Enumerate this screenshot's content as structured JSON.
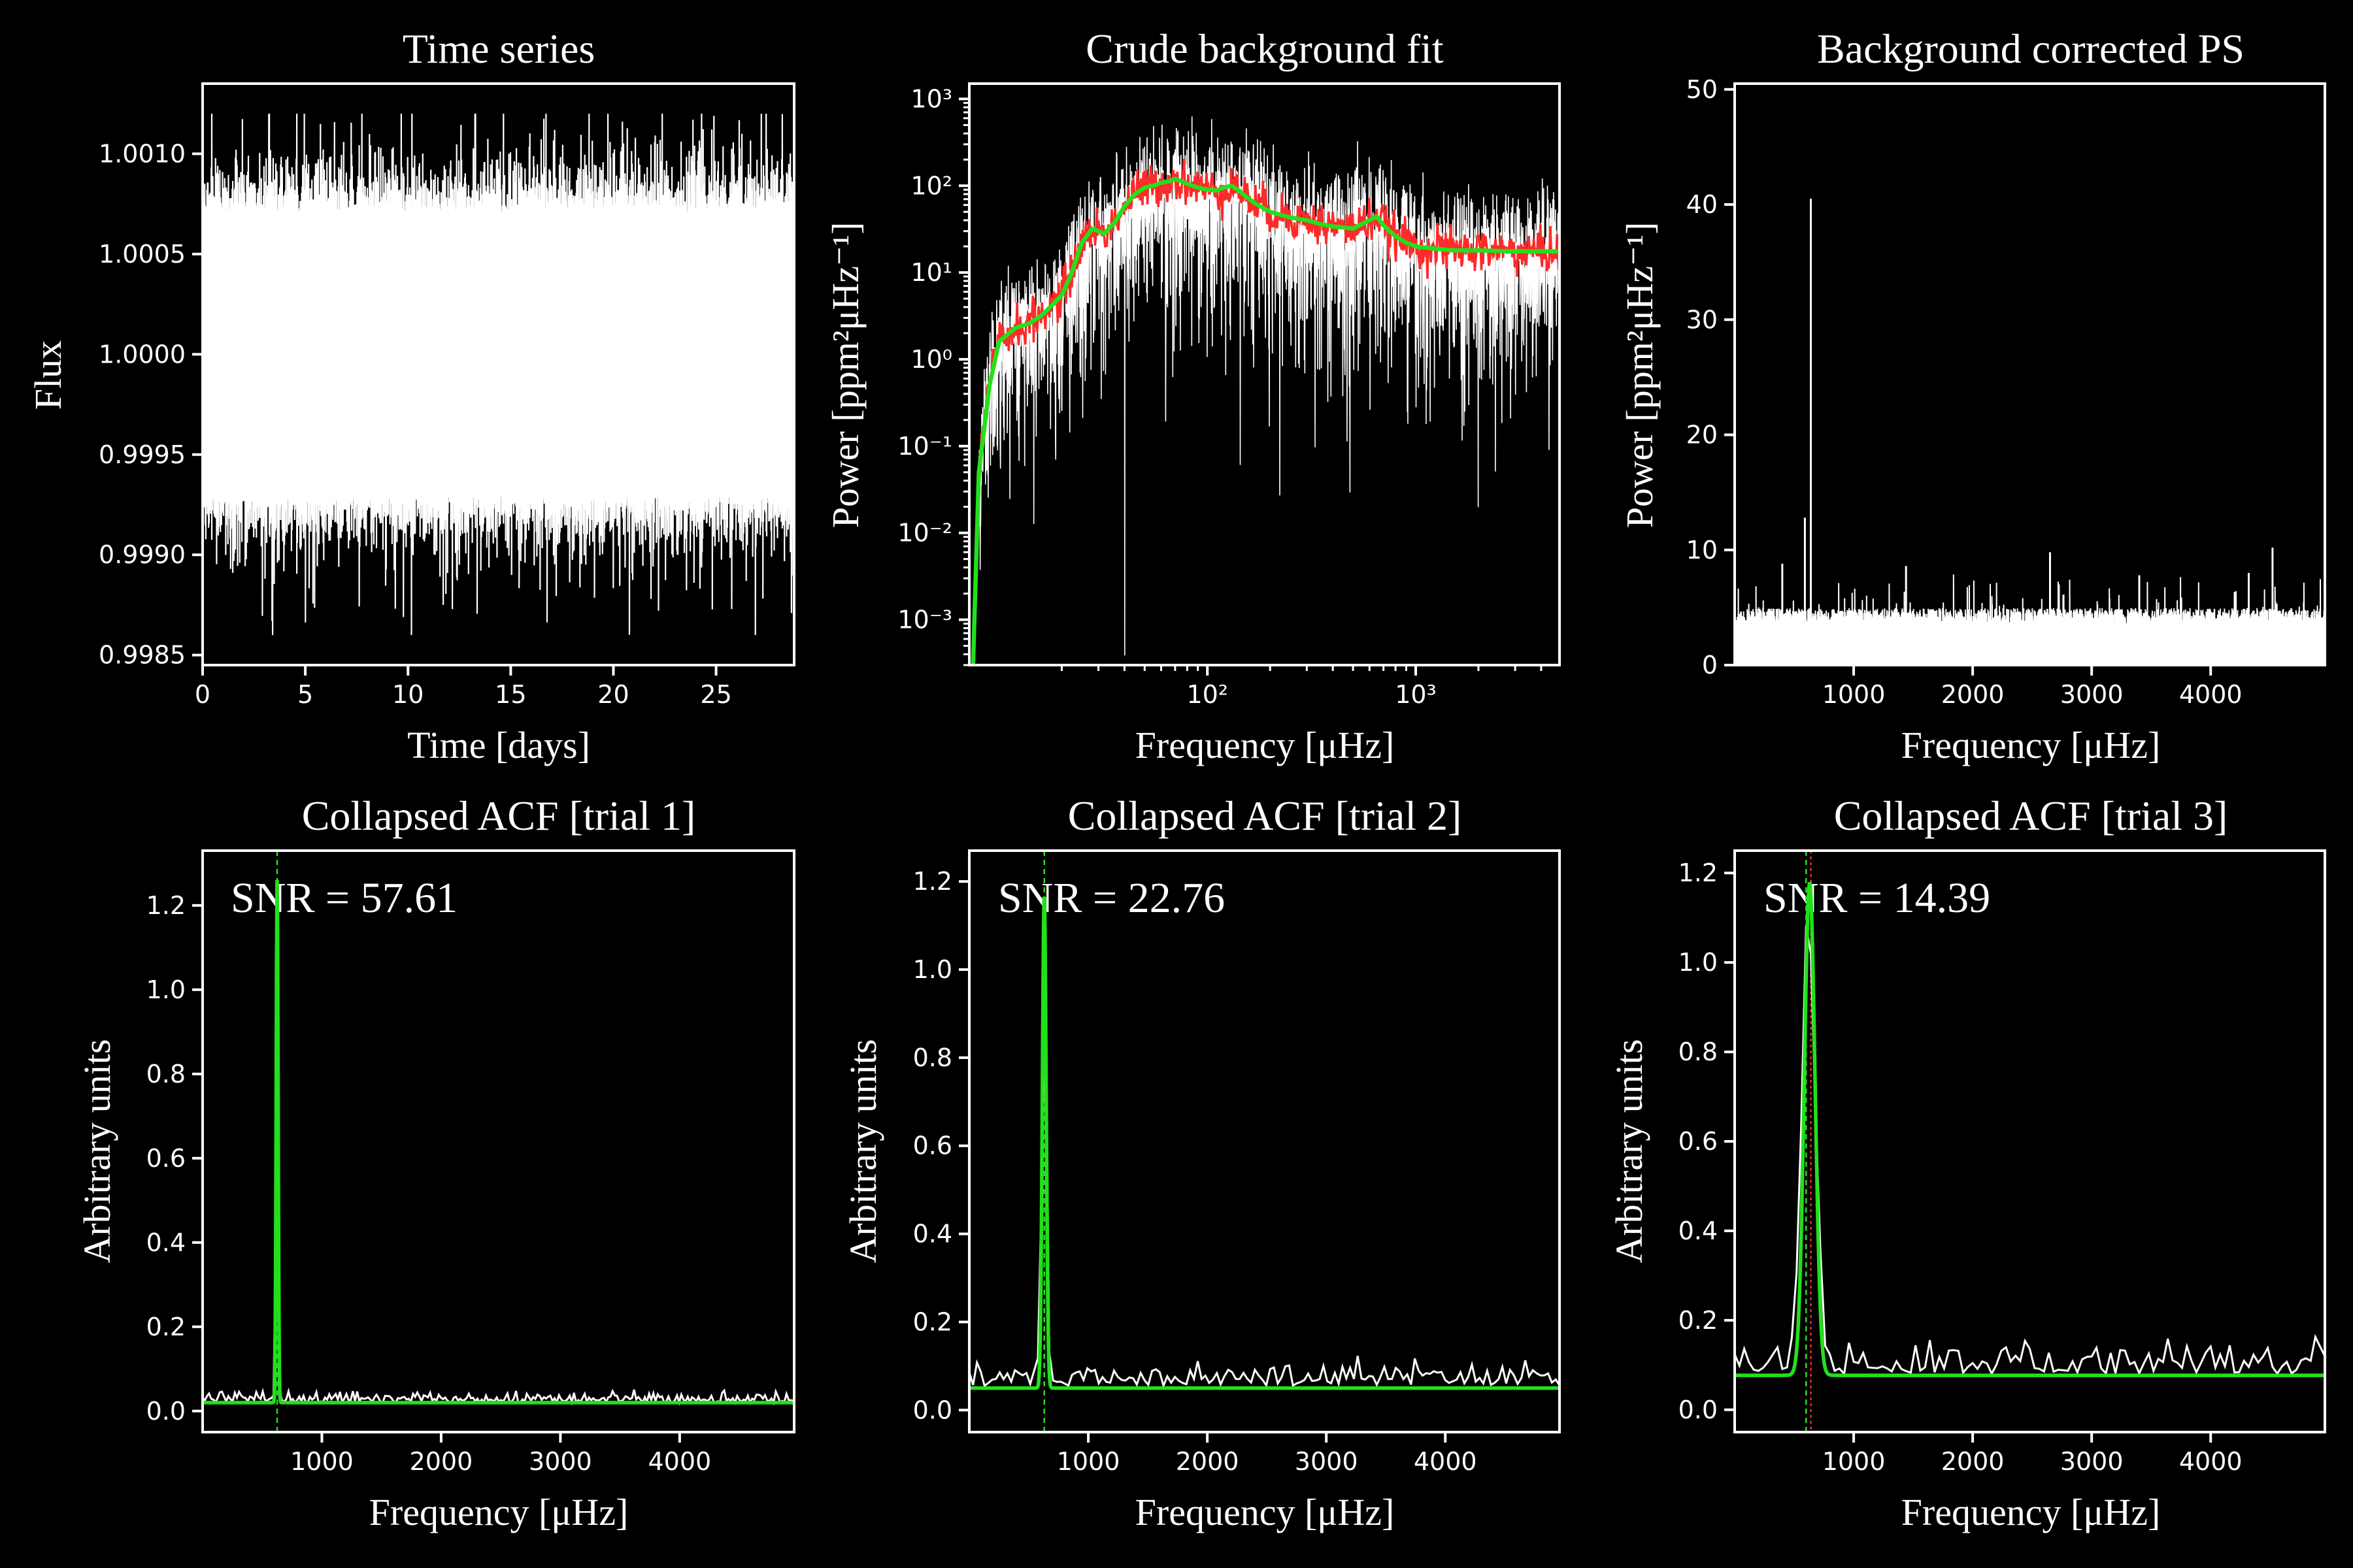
{
  "colors": {
    "background": "#000000",
    "foreground": "#ffffff",
    "fit": "#22e01c",
    "smooth": "#ff2a2a",
    "marker_green": "#22e01c",
    "marker_red": "#ff2a2a"
  },
  "chart_data": [
    {
      "id": "ts",
      "type": "line",
      "title": "Time series",
      "xlabel": "Time [days]",
      "ylabel": "Flux",
      "xlim": [
        0,
        28.8
      ],
      "ylim": [
        0.99845,
        1.00135
      ],
      "xscale": "linear",
      "yscale": "linear",
      "xticks": [
        0,
        5,
        10,
        15,
        20,
        25
      ],
      "xtick_labels": [
        "0",
        "5",
        "10",
        "15",
        "20",
        "25"
      ],
      "yticks": [
        0.9985,
        0.999,
        0.9995,
        1.0,
        1.0005,
        1.001
      ],
      "ytick_labels": [
        "0.9985",
        "0.9990",
        "0.9995",
        "1.0000",
        "1.0005",
        "1.0010"
      ],
      "series": [
        {
          "color": "#ffffff",
          "band": {
            "lower": 0.9993,
            "upper": 1.0007,
            "center": 1.0,
            "mean_amplitude": 0.0007,
            "max_excursion_high": 1.0012,
            "max_excursion_low": 0.9986
          }
        }
      ]
    },
    {
      "id": "bg",
      "type": "line",
      "title": "Crude background fit",
      "xlabel": "Frequency [μHz]",
      "ylabel": "Power [ppm²μHz⁻¹]",
      "xlim": [
        7.2,
        4900
      ],
      "ylim": [
        0.0003,
        1500
      ],
      "xscale": "log",
      "yscale": "log",
      "xticks": [
        100,
        1000
      ],
      "xtick_labels": [
        "10²",
        "10³"
      ],
      "yticks": [
        0.001,
        0.01,
        0.1,
        1,
        10,
        100,
        1000
      ],
      "ytick_labels": [
        "10⁻³",
        "10⁻²",
        "10⁻¹",
        "10⁰",
        "10¹",
        "10²",
        "10³"
      ],
      "series": [
        {
          "color": "#ffffff",
          "kind": "raw spectrum"
        },
        {
          "color": "#ff2a2a",
          "kind": "smoothed spectrum"
        },
        {
          "color": "#22e01c",
          "kind": "background fit",
          "x": [
            7.5,
            8,
            9,
            10,
            12,
            14,
            16,
            18,
            20,
            22,
            25,
            28,
            32,
            36,
            40,
            45,
            50,
            55,
            60,
            65,
            70,
            80,
            90,
            100,
            110,
            120,
            130,
            140,
            150,
            170,
            200,
            250,
            300,
            350,
            400,
            450,
            500,
            550,
            600,
            650,
            700,
            800,
            900,
            1000,
            1200,
            1500,
            2000,
            3000,
            4000,
            4900
          ],
          "y": [
            0.0003,
            0.05,
            0.5,
            1.6,
            2.3,
            2.6,
            3.2,
            4.2,
            5.5,
            9.0,
            22,
            32,
            28,
            38,
            58,
            80,
            95,
            100,
            108,
            112,
            120,
            105,
            95,
            90,
            88,
            95,
            100,
            90,
            78,
            62,
            50,
            43,
            40,
            36,
            34,
            33,
            32,
            36,
            40,
            44,
            35,
            26,
            22,
            20,
            19,
            18,
            18,
            17.5,
            17.5,
            17.5
          ]
        }
      ]
    },
    {
      "id": "ps",
      "type": "line",
      "title": "Background corrected PS",
      "xlabel": "Frequency [μHz]",
      "ylabel": "Power [ppm²μHz⁻¹]",
      "xlim": [
        0,
        4960
      ],
      "ylim": [
        0,
        50.5
      ],
      "xscale": "linear",
      "yscale": "linear",
      "xticks": [
        1000,
        2000,
        3000,
        4000
      ],
      "xtick_labels": [
        "1000",
        "2000",
        "3000",
        "4000"
      ],
      "yticks": [
        0,
        10,
        20,
        30,
        40,
        50
      ],
      "ytick_labels": [
        "0",
        "10",
        "20",
        "30",
        "40",
        "50"
      ],
      "series": [
        {
          "color": "#ffffff",
          "noise_level": 4.5,
          "peaks": [
            {
              "x": 640,
              "y": 40.5
            },
            {
              "x": 590,
              "y": 12.8
            },
            {
              "x": 400,
              "y": 8.8
            },
            {
              "x": 1440,
              "y": 8.6
            },
            {
              "x": 2650,
              "y": 9.8
            },
            {
              "x": 3400,
              "y": 7.8
            },
            {
              "x": 4520,
              "y": 10.2
            },
            {
              "x": 4320,
              "y": 8.0
            }
          ]
        }
      ]
    },
    {
      "id": "acf1",
      "type": "line",
      "title": "Collapsed ACF [trial 1]",
      "xlabel": "Frequency [μHz]",
      "ylabel": "Arbitrary units",
      "annotation": "SNR = 57.61",
      "xlim": [
        0,
        4960
      ],
      "ylim": [
        -0.05,
        1.33
      ],
      "xscale": "linear",
      "yscale": "linear",
      "xticks": [
        1000,
        2000,
        3000,
        4000
      ],
      "xtick_labels": [
        "1000",
        "2000",
        "3000",
        "4000"
      ],
      "yticks": [
        0.0,
        0.2,
        0.4,
        0.6,
        0.8,
        1.0,
        1.2
      ],
      "ytick_labels": [
        "0.0",
        "0.2",
        "0.4",
        "0.6",
        "0.8",
        "1.0",
        "1.2"
      ],
      "marker_x": 625,
      "series": [
        {
          "color": "#ffffff",
          "kind": "collapsed ACF",
          "baseline": 0.02,
          "noise": 0.012,
          "peak": {
            "x": 625,
            "y": 1.25,
            "width": 8
          }
        },
        {
          "color": "#22e01c",
          "kind": "fit",
          "baseline": 0.02,
          "peak": {
            "x": 625,
            "y": 1.25,
            "width": 8
          }
        }
      ]
    },
    {
      "id": "acf2",
      "type": "line",
      "title": "Collapsed ACF [trial 2]",
      "xlabel": "Frequency [μHz]",
      "ylabel": "Arbitrary units",
      "annotation": "SNR = 22.76",
      "xlim": [
        0,
        4960
      ],
      "ylim": [
        -0.05,
        1.27
      ],
      "xscale": "linear",
      "yscale": "linear",
      "xticks": [
        1000,
        2000,
        3000,
        4000
      ],
      "xtick_labels": [
        "1000",
        "2000",
        "3000",
        "4000"
      ],
      "yticks": [
        0.0,
        0.2,
        0.4,
        0.6,
        0.8,
        1.0,
        1.2
      ],
      "ytick_labels": [
        "0.0",
        "0.2",
        "0.4",
        "0.6",
        "0.8",
        "1.0",
        "1.2"
      ],
      "marker_x": 630,
      "series": [
        {
          "color": "#ffffff",
          "kind": "collapsed ACF",
          "baseline": 0.055,
          "noise": 0.025,
          "peak": {
            "x": 630,
            "y": 1.1,
            "width": 16
          }
        },
        {
          "color": "#22e01c",
          "kind": "fit",
          "baseline": 0.05,
          "peak": {
            "x": 630,
            "y": 1.12,
            "width": 16
          }
        }
      ]
    },
    {
      "id": "acf3",
      "type": "line",
      "title": "Collapsed ACF [trial 3]",
      "xlabel": "Frequency [μHz]",
      "ylabel": "Arbitrary units",
      "annotation": "SNR = 14.39",
      "xlim": [
        0,
        4960
      ],
      "ylim": [
        -0.05,
        1.25
      ],
      "xscale": "linear",
      "yscale": "linear",
      "xticks": [
        1000,
        2000,
        3000,
        4000
      ],
      "xtick_labels": [
        "1000",
        "2000",
        "3000",
        "4000"
      ],
      "yticks": [
        0.0,
        0.2,
        0.4,
        0.6,
        0.8,
        1.0,
        1.2
      ],
      "ytick_labels": [
        "0.0",
        "0.2",
        "0.4",
        "0.6",
        "0.8",
        "1.0",
        "1.2"
      ],
      "marker_x": 600,
      "marker_x2": 640,
      "series": [
        {
          "color": "#ffffff",
          "kind": "collapsed ACF",
          "baseline": 0.08,
          "noise": 0.035,
          "peak": {
            "x": 620,
            "y": 1.0,
            "width": 55
          }
        },
        {
          "color": "#22e01c",
          "kind": "fit",
          "baseline": 0.077,
          "peak": {
            "x": 630,
            "y": 1.1,
            "width": 45
          }
        }
      ]
    }
  ]
}
